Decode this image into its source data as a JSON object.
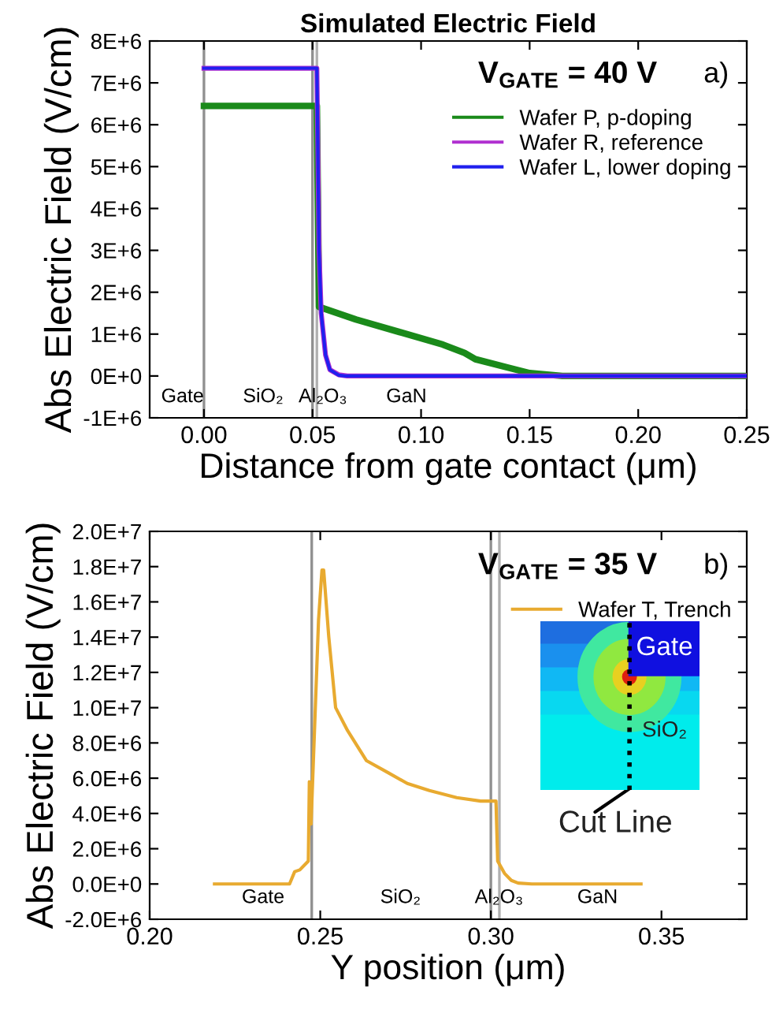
{
  "chart_data": [
    {
      "type": "line",
      "title": "Simulated Electric Field",
      "xlabel": "Distance from gate contact (μm)",
      "ylabel": "Abs Electric Field (V/cm)",
      "xlim": [
        -0.025,
        0.25
      ],
      "xticks": [
        {
          "value": 0,
          "label": "0.00"
        },
        {
          "value": 0.05,
          "label": "0.05"
        },
        {
          "value": 0.1,
          "label": "0.10"
        },
        {
          "value": 0.15,
          "label": "0.15"
        },
        {
          "value": 0.2,
          "label": "0.20"
        },
        {
          "value": 0.25,
          "label": "0.25"
        }
      ],
      "ylim": [
        -1000000,
        8000000
      ],
      "yticks": [
        {
          "value": -1000000,
          "label": "-1E+6"
        },
        {
          "value": 0,
          "label": "0E+0"
        },
        {
          "value": 1000000,
          "label": "1E+6"
        },
        {
          "value": 2000000,
          "label": "2E+6"
        },
        {
          "value": 3000000,
          "label": "3E+6"
        },
        {
          "value": 4000000,
          "label": "4E+6"
        },
        {
          "value": 5000000,
          "label": "5E+6"
        },
        {
          "value": 6000000,
          "label": "6E+6"
        },
        {
          "value": 7000000,
          "label": "7E+6"
        },
        {
          "value": 8000000,
          "label": "8E+6"
        }
      ],
      "legend": "top right",
      "grid": false,
      "series": [
        {
          "name": "Wafer P, p-doping",
          "color": "#1a8a1a",
          "x": [
            0,
            0.052,
            0.053,
            0.07,
            0.09,
            0.11,
            0.12,
            0.125,
            0.14,
            0.15,
            0.165,
            0.25
          ],
          "values": [
            6450000,
            6450000,
            1650000,
            1350000,
            1050000,
            750000,
            550000,
            400000,
            200000,
            70000,
            0,
            0
          ]
        },
        {
          "name": "Wafer R, reference",
          "color": "#b030d0",
          "x": [
            0,
            0.052,
            0.053,
            0.054,
            0.056,
            0.058,
            0.062,
            0.066,
            0.25
          ],
          "values": [
            7350000,
            7350000,
            3000000,
            1500000,
            500000,
            150000,
            30000,
            0,
            0
          ]
        },
        {
          "name": "Wafer L, lower doping",
          "color": "#2020ee",
          "x": [
            0,
            0.052,
            0.053,
            0.054,
            0.056,
            0.058,
            0.062,
            0.065,
            0.25
          ],
          "values": [
            7350000,
            7350000,
            3000000,
            1500000,
            500000,
            150000,
            20000,
            0,
            0
          ]
        }
      ],
      "ref_lines": [
        {
          "axis": "x",
          "value": 0,
          "color": "#909090"
        },
        {
          "axis": "x",
          "value": 0.05,
          "color": "#909090"
        },
        {
          "axis": "x",
          "value": 0.052,
          "color": "#b0b0b0"
        }
      ],
      "annotations": [
        "Gate",
        "SiO₂",
        "Al₂O₃",
        "GaN",
        "V$_{GATE}$ = 40 V",
        "a)"
      ]
    },
    {
      "type": "line",
      "xlabel": "Y position (μm)",
      "ylabel": "Abs Electric Field (V/cm)",
      "xlim": [
        0.2,
        0.375
      ],
      "xticks": [
        {
          "value": 0.2,
          "label": "0.20"
        },
        {
          "value": 0.25,
          "label": "0.25"
        },
        {
          "value": 0.3,
          "label": "0.30"
        },
        {
          "value": 0.35,
          "label": "0.35"
        }
      ],
      "ylim": [
        -2000000,
        20000000
      ],
      "yticks": [
        {
          "value": -2000000,
          "label": "-2.0E+6"
        },
        {
          "value": 0,
          "label": "0.0E+0"
        },
        {
          "value": 2000000,
          "label": "2.0E+6"
        },
        {
          "value": 4000000,
          "label": "4.0E+6"
        },
        {
          "value": 6000000,
          "label": "6.0E+6"
        },
        {
          "value": 8000000,
          "label": "8.0E+6"
        },
        {
          "value": 10000000,
          "label": "1.0E+7"
        },
        {
          "value": 12000000,
          "label": "1.2E+7"
        },
        {
          "value": 14000000,
          "label": "1.4E+7"
        },
        {
          "value": 16000000,
          "label": "1.6E+7"
        },
        {
          "value": 18000000,
          "label": "1.8E+7"
        },
        {
          "value": 20000000,
          "label": "2.0E+7"
        }
      ],
      "legend": "top right",
      "grid": false,
      "series": [
        {
          "name": "Wafer T, Trench",
          "color": "#e8aa30",
          "x": [
            0.219,
            0.241,
            0.2425,
            0.244,
            0.2465,
            0.2468,
            0.2473,
            0.2495,
            0.2505,
            0.251,
            0.2525,
            0.2545,
            0.258,
            0.2635,
            0.27,
            0.2755,
            0.282,
            0.29,
            0.297,
            0.3015,
            0.302,
            0.304,
            0.306,
            0.308,
            0.312,
            0.344
          ],
          "values": [
            0,
            0,
            700000,
            800000,
            1300000,
            5800000,
            3400000,
            15000000,
            17800000,
            17800000,
            14000000,
            10000000,
            8700000,
            7000000,
            6300000,
            5700000,
            5300000,
            4900000,
            4700000,
            4700000,
            1300000,
            600000,
            200000,
            50000,
            0,
            0
          ]
        }
      ],
      "ref_lines": [
        {
          "axis": "x",
          "value": 0.2475,
          "color": "#909090"
        },
        {
          "axis": "x",
          "value": 0.3,
          "color": "#909090"
        },
        {
          "axis": "x",
          "value": 0.3025,
          "color": "#b0b0b0"
        }
      ],
      "annotations": [
        "Gate",
        "SiO₂",
        "Al₂O₃",
        "GaN",
        "V$_{GATE}$ = 35 V",
        "b)",
        "Gate",
        "SiO₂",
        "Cut Line"
      ]
    }
  ]
}
